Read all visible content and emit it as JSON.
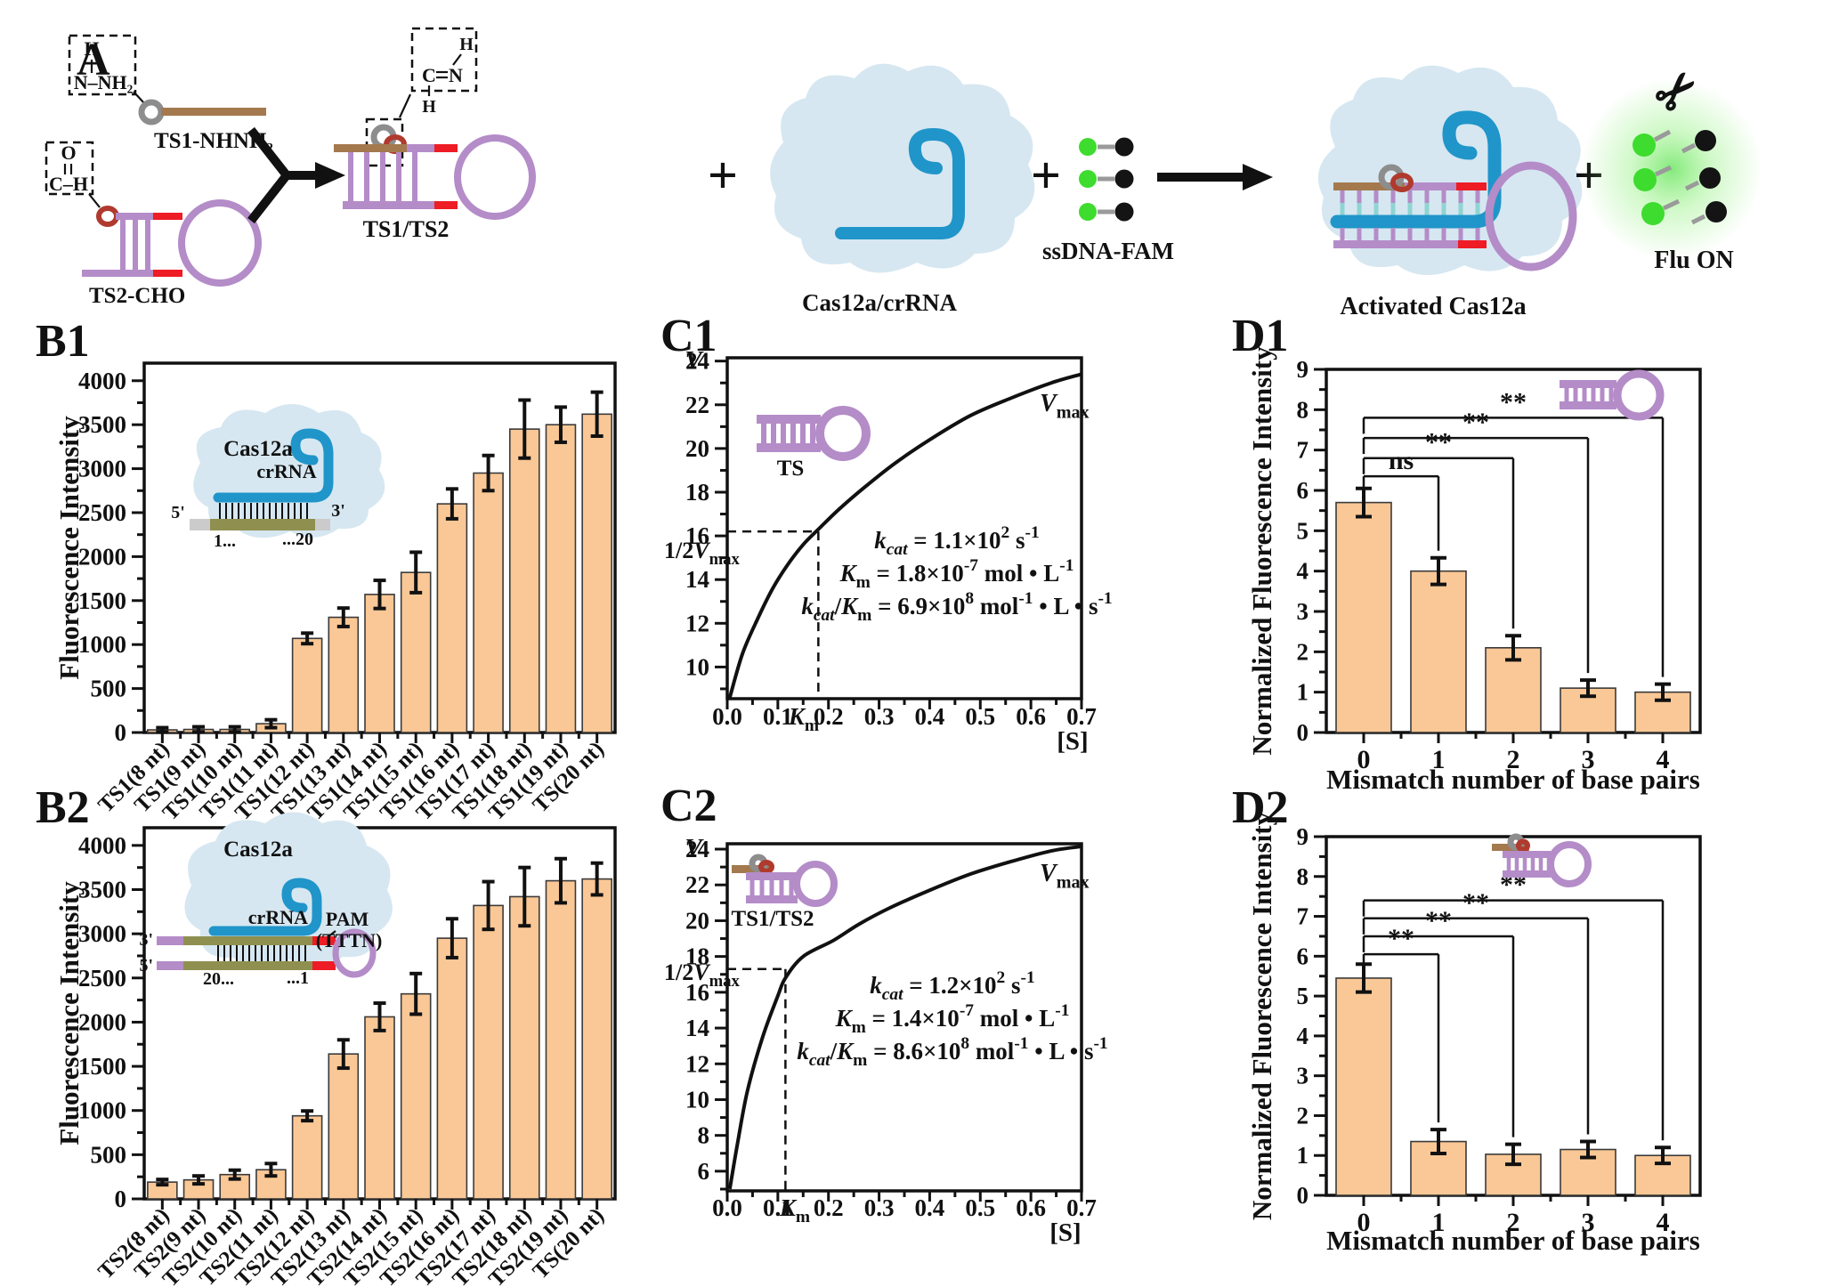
{
  "colors": {
    "bar_fill": "#FAC896",
    "bar_stroke": "#3a3a3a",
    "purple": "#b48cc8",
    "red": "#ee1c25",
    "brown": "#a4794e",
    "gray_ring": "#8d8d8d",
    "dark_red_ring": "#b03a2e",
    "blob_blue": "#d6e7f1",
    "crrna_blue": "#2095c9",
    "olive": "#8f9050",
    "light_gray": "#cbcbcb",
    "teal": "#8ed4d2",
    "fam_green": "#3ddc2e",
    "quencher_black": "#141414"
  },
  "panel_a": {
    "label": "A",
    "hydrazine_box": {
      "h": "H",
      "group": "N–NH₂"
    },
    "aldehyde_box": {
      "o": "O",
      "group": "C–H"
    },
    "imine_box": {
      "h_top": "H",
      "c": "C",
      "n": "N",
      "h_bottom": "H"
    },
    "ts1_label": "TS1-NHNH₂",
    "ts2_label": "TS2-CHO",
    "product_label": "TS1/TS2",
    "cas_label": "Cas12a/crRNA",
    "ssdna_label": "ssDNA-FAM",
    "activated_label": "Activated Cas12a",
    "fluon_label": "Flu ON",
    "plus": "+",
    "scissors_icon": "✂"
  },
  "chart_data": [
    {
      "id": "b1",
      "panel_label": "B1",
      "type": "bar",
      "ylabel": "Fluorescence Intensity",
      "categories": [
        "TS1(8 nt)",
        "TS1(9 nt)",
        "TS1(10 nt)",
        "TS1(11 nt)",
        "TS1(12 nt)",
        "TS1(13 nt)",
        "TS1(14 nt)",
        "TS1(15 nt)",
        "TS1(16 nt)",
        "TS1(17 nt)",
        "TS1(18 nt)",
        "TS1(19 nt)",
        "TS(20 nt)"
      ],
      "values": [
        30,
        35,
        35,
        100,
        1070,
        1310,
        1570,
        1820,
        2600,
        2950,
        3450,
        3500,
        3620
      ],
      "errors": [
        25,
        30,
        30,
        45,
        60,
        105,
        160,
        230,
        170,
        200,
        330,
        200,
        250
      ],
      "yticks": [
        0,
        500,
        1000,
        1500,
        2000,
        2500,
        3000,
        3500,
        4000
      ],
      "ylim": [
        0,
        4200
      ],
      "inset": {
        "protein": "Cas12a",
        "rna": "crRNA",
        "five_prime": "5'",
        "three_prime": "3'",
        "start": "1...",
        "end": "...20"
      }
    },
    {
      "id": "b2",
      "panel_label": "B2",
      "type": "bar",
      "ylabel": "Fluorescence Intensity",
      "categories": [
        "TS2(8 nt)",
        "TS2(9 nt)",
        "TS2(10 nt)",
        "TS2(11 nt)",
        "TS2(12 nt)",
        "TS2(13 nt)",
        "TS2(14 nt)",
        "TS2(15 nt)",
        "TS2(16 nt)",
        "TS2(17 nt)",
        "TS2(18 nt)",
        "TS2(19 nt)",
        "TS(20 nt)"
      ],
      "values": [
        190,
        215,
        275,
        330,
        940,
        1640,
        2060,
        2320,
        2950,
        3320,
        3420,
        3600,
        3620
      ],
      "errors": [
        30,
        45,
        50,
        70,
        55,
        160,
        155,
        230,
        220,
        270,
        330,
        250,
        180
      ],
      "yticks": [
        0,
        500,
        1000,
        1500,
        2000,
        2500,
        3000,
        3500,
        4000
      ],
      "ylim": [
        0,
        4200
      ],
      "inset": {
        "protein": "Cas12a",
        "rna": "crRNA",
        "pam": "PAM",
        "pam2": "(TTTN)",
        "three_prime": "3'",
        "five_prime": "5'",
        "start": "20...",
        "end": "...1"
      }
    },
    {
      "id": "c1",
      "panel_label": "C1",
      "type": "line",
      "inset_label": "TS",
      "x": [
        0.005,
        0.03,
        0.06,
        0.09,
        0.12,
        0.15,
        0.18,
        0.22,
        0.27,
        0.33,
        0.4,
        0.48,
        0.56,
        0.64,
        0.7
      ],
      "y": [
        8.6,
        10.6,
        12.2,
        13.6,
        14.7,
        15.6,
        16.3,
        17.2,
        18.2,
        19.3,
        20.4,
        21.5,
        22.3,
        23.0,
        23.4
      ],
      "xlim": [
        0,
        0.7
      ],
      "xticks": [
        "0.0",
        "0.1",
        "0.2",
        "0.3",
        "0.4",
        "0.5",
        "0.6",
        "0.7"
      ],
      "yticks": [
        10,
        12,
        14,
        16,
        18,
        20,
        22,
        24
      ],
      "km": 0.18,
      "half_vmax": 16.2,
      "labels": {
        "v_label": [
          [
            "V",
            "i"
          ]
        ],
        "s_label": [
          [
            "[S]",
            ""
          ]
        ],
        "vmax_label": [
          [
            "V",
            "i"
          ],
          [
            "max",
            "sub"
          ]
        ],
        "half_vmax_label": [
          [
            "1/2",
            ""
          ],
          [
            "V",
            "i"
          ],
          [
            "max",
            "sub"
          ]
        ],
        "km_label": [
          [
            "K",
            "i"
          ],
          [
            "m",
            "sub"
          ]
        ]
      },
      "kinetics": [
        [
          [
            "k",
            "i"
          ],
          [
            "cat",
            "isub"
          ],
          [
            " = 1.1×10",
            ""
          ],
          [
            "2",
            "sup"
          ],
          [
            " s",
            ""
          ],
          [
            "-1",
            "sup"
          ]
        ],
        [
          [
            "K",
            "i"
          ],
          [
            "m",
            "sub"
          ],
          [
            " = 1.8×10",
            ""
          ],
          [
            "-7",
            "sup"
          ],
          [
            " mol • L",
            ""
          ],
          [
            "-1",
            "sup"
          ]
        ],
        [
          [
            "k",
            "i"
          ],
          [
            "cat",
            "isub"
          ],
          [
            "/",
            ""
          ],
          [
            "K",
            "i"
          ],
          [
            "m",
            "sub"
          ],
          [
            " = 6.9×10",
            ""
          ],
          [
            "8",
            "sup"
          ],
          [
            " mol",
            ""
          ],
          [
            "-1",
            "sup"
          ],
          [
            " • L • s",
            ""
          ],
          [
            "-1",
            "sup"
          ]
        ]
      ]
    },
    {
      "id": "c2",
      "panel_label": "C2",
      "type": "line",
      "inset_label": "TS1/TS2",
      "x": [
        0.005,
        0.02,
        0.04,
        0.07,
        0.1,
        0.115,
        0.15,
        0.21,
        0.26,
        0.32,
        0.4,
        0.48,
        0.56,
        0.64,
        0.7
      ],
      "y": [
        5.0,
        7.5,
        10.5,
        13.5,
        15.8,
        16.8,
        18.0,
        18.9,
        19.8,
        20.7,
        21.7,
        22.6,
        23.3,
        23.9,
        24.15
      ],
      "xlim": [
        0,
        0.7
      ],
      "xticks": [
        "0.0",
        "0.1",
        "0.2",
        "0.3",
        "0.4",
        "0.5",
        "0.6",
        "0.7"
      ],
      "yticks": [
        6,
        8,
        10,
        12,
        14,
        16,
        18,
        20,
        22,
        24
      ],
      "km": 0.115,
      "half_vmax": 17.3,
      "labels": {
        "v_label": [
          [
            "V",
            "i"
          ]
        ],
        "s_label": [
          [
            "[S]",
            ""
          ]
        ],
        "vmax_label": [
          [
            "V",
            "i"
          ],
          [
            "max",
            "sub"
          ]
        ],
        "half_vmax_label": [
          [
            "1/2",
            ""
          ],
          [
            "V",
            "i"
          ],
          [
            "max",
            "sub"
          ]
        ],
        "km_label": [
          [
            "K",
            "i"
          ],
          [
            "m",
            "sub"
          ]
        ]
      },
      "kinetics": [
        [
          [
            "k",
            "i"
          ],
          [
            "cat",
            "isub"
          ],
          [
            " = 1.2×10",
            ""
          ],
          [
            "2",
            "sup"
          ],
          [
            " s",
            ""
          ],
          [
            "-1",
            "sup"
          ]
        ],
        [
          [
            "K",
            "i"
          ],
          [
            "m",
            "sub"
          ],
          [
            " = 1.4×10",
            ""
          ],
          [
            "-7",
            "sup"
          ],
          [
            " mol • L",
            ""
          ],
          [
            "-1",
            "sup"
          ]
        ],
        [
          [
            "k",
            "i"
          ],
          [
            "cat",
            "isub"
          ],
          [
            "/",
            ""
          ],
          [
            "K",
            "i"
          ],
          [
            "m",
            "sub"
          ],
          [
            " = 8.6×10",
            ""
          ],
          [
            "8",
            "sup"
          ],
          [
            " mol",
            ""
          ],
          [
            "-1",
            "sup"
          ],
          [
            " • L • s",
            ""
          ],
          [
            "-1",
            "sup"
          ]
        ]
      ]
    },
    {
      "id": "d1",
      "panel_label": "D1",
      "type": "bar",
      "ylabel": "Normalized Fluorescence Intensity",
      "xlabel": "Mismatch number of base pairs",
      "categories": [
        "0",
        "1",
        "2",
        "3",
        "4"
      ],
      "values": [
        5.7,
        4.0,
        2.1,
        1.1,
        1.0
      ],
      "errors": [
        0.35,
        0.33,
        0.3,
        0.2,
        0.2
      ],
      "yticks": [
        0,
        1,
        2,
        3,
        4,
        5,
        6,
        7,
        8,
        9
      ],
      "ylim": [
        0,
        9
      ],
      "brackets": [
        {
          "from": 0,
          "to": 1,
          "y": 6.35,
          "label": "ns"
        },
        {
          "from": 0,
          "to": 2,
          "y": 6.8,
          "label": "**"
        },
        {
          "from": 0,
          "to": 3,
          "y": 7.3,
          "label": "**"
        },
        {
          "from": 0,
          "to": 4,
          "y": 7.8,
          "label": "**"
        }
      ]
    },
    {
      "id": "d2",
      "panel_label": "D2",
      "type": "bar",
      "ylabel": "Normalized Fluorescence Intensity",
      "xlabel": "Mismatch number of base pairs",
      "categories": [
        "0",
        "1",
        "2",
        "3",
        "4"
      ],
      "values": [
        5.45,
        1.35,
        1.03,
        1.15,
        1.0
      ],
      "errors": [
        0.35,
        0.3,
        0.25,
        0.2,
        0.2
      ],
      "yticks": [
        0,
        1,
        2,
        3,
        4,
        5,
        6,
        7,
        8,
        9
      ],
      "ylim": [
        0,
        9
      ],
      "brackets": [
        {
          "from": 0,
          "to": 1,
          "y": 6.05,
          "label": "**"
        },
        {
          "from": 0,
          "to": 2,
          "y": 6.5,
          "label": "**"
        },
        {
          "from": 0,
          "to": 3,
          "y": 6.95,
          "label": "**"
        },
        {
          "from": 0,
          "to": 4,
          "y": 7.4,
          "label": "**"
        }
      ]
    }
  ]
}
